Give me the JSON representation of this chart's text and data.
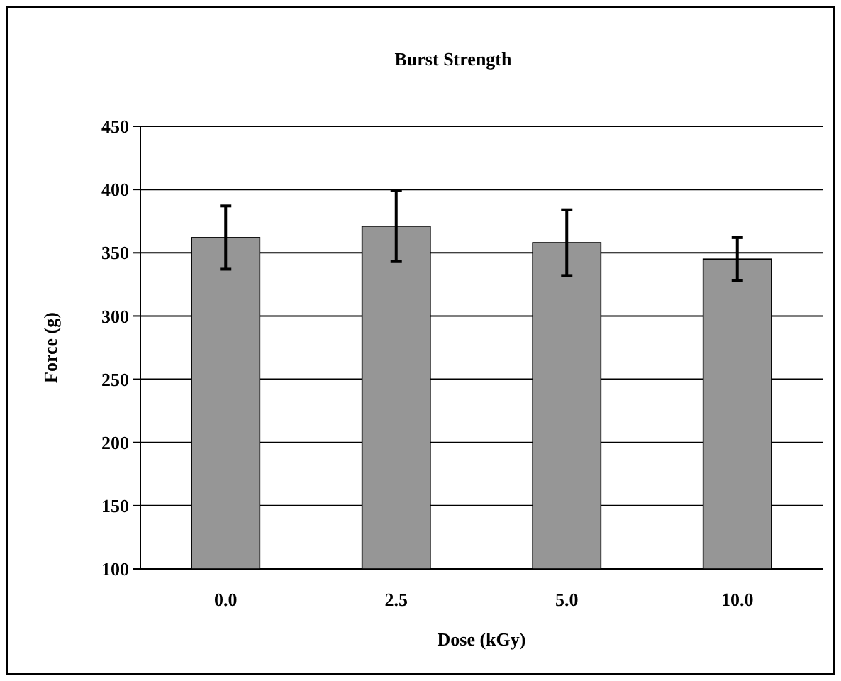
{
  "chart_data": {
    "type": "bar",
    "title": "Burst Strength",
    "xlabel": "Dose (kGy)",
    "ylabel": "Force (g)",
    "categories": [
      "0.0",
      "2.5",
      "5.0",
      "10.0"
    ],
    "values": [
      362,
      371,
      358,
      345
    ],
    "errors": [
      25,
      28,
      26,
      17
    ],
    "color": "#969696",
    "ylim": [
      100,
      450
    ],
    "yticks": [
      100,
      150,
      200,
      250,
      300,
      350,
      400,
      450
    ],
    "grid": "y"
  }
}
